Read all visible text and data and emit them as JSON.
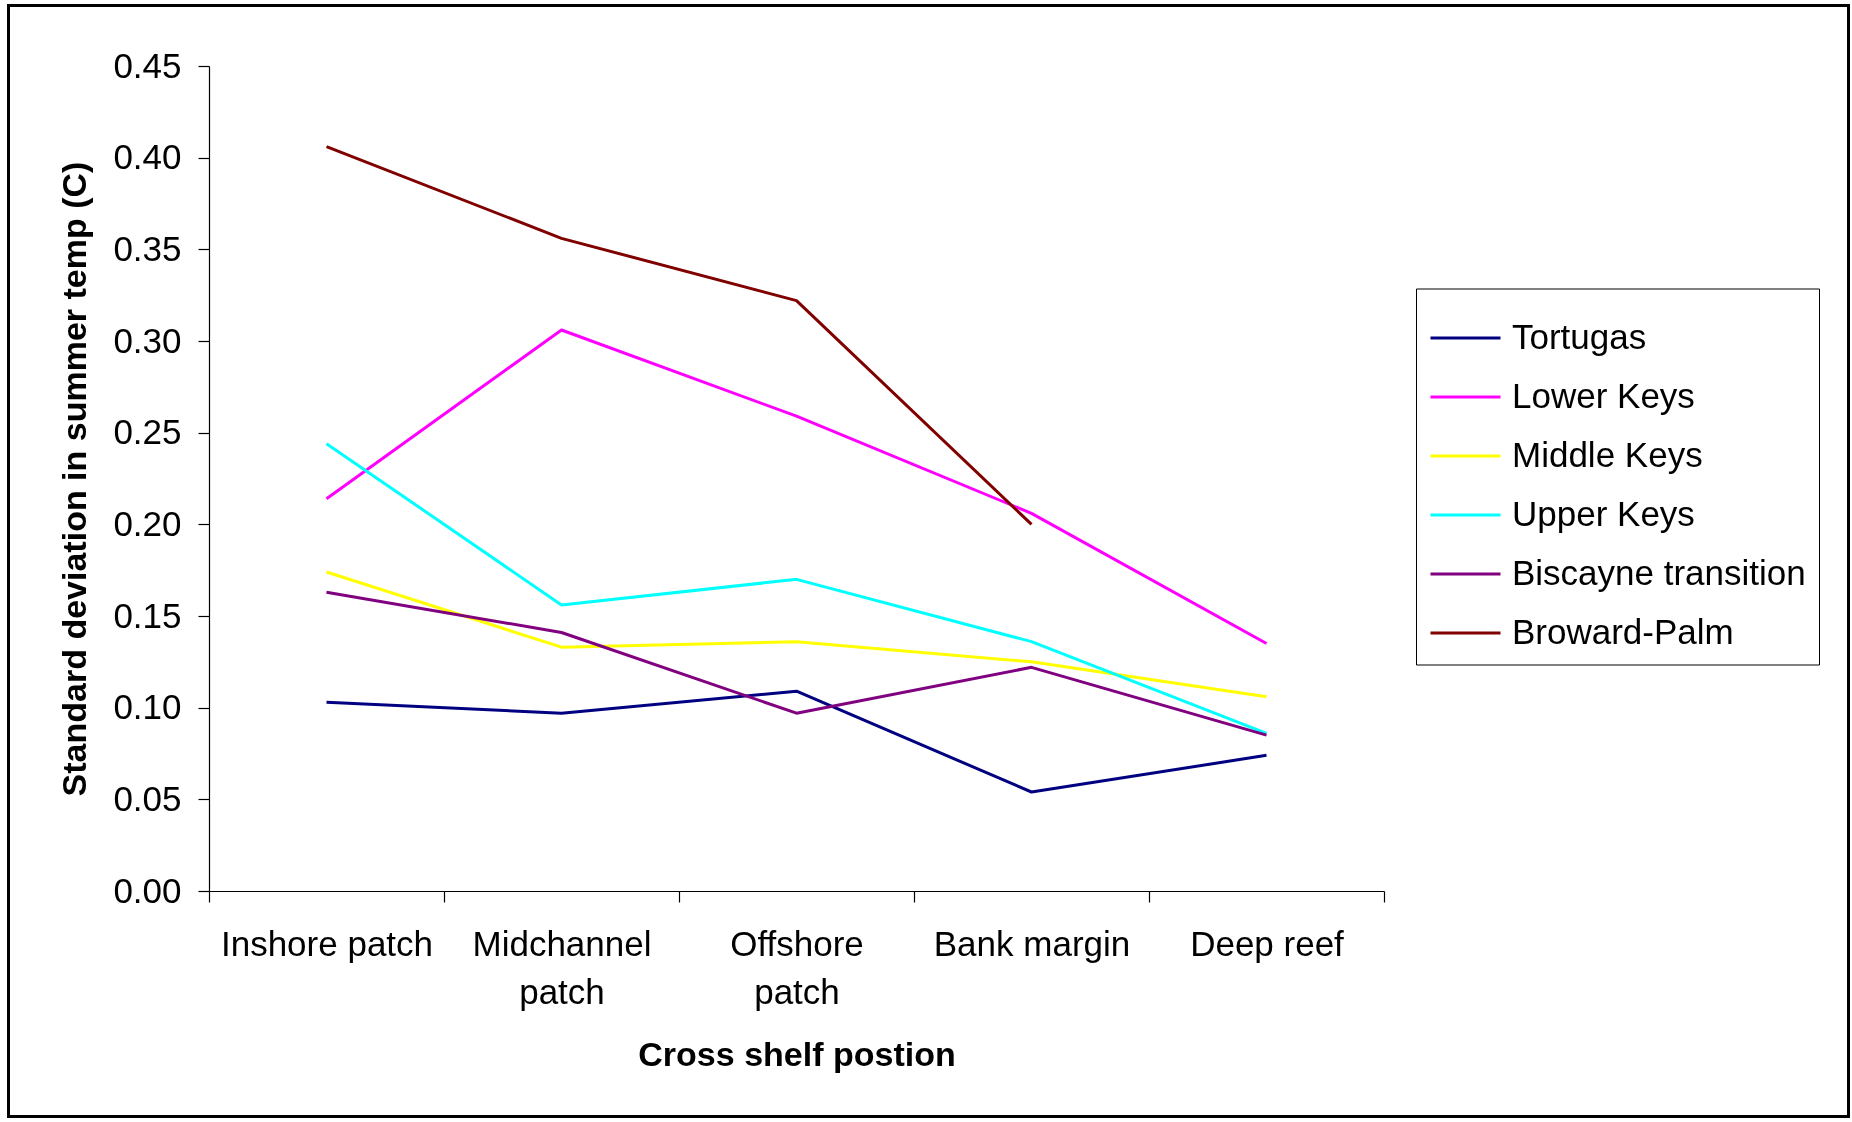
{
  "chart_data": {
    "type": "line",
    "xlabel": "Cross shelf postion",
    "ylabel": "Standard deviation in summer temp (C)",
    "categories": [
      "Inshore patch",
      "Midchannel patch",
      "Offshore patch",
      "Bank margin",
      "Deep reef"
    ],
    "series": [
      {
        "name": "Tortugas",
        "color": "#000080",
        "values": [
          0.103,
          0.097,
          0.109,
          0.054,
          0.074
        ]
      },
      {
        "name": "Lower Keys",
        "color": "#ff00ff",
        "values": [
          0.214,
          0.306,
          0.259,
          0.206,
          0.135
        ]
      },
      {
        "name": "Middle Keys",
        "color": "#ffff00",
        "values": [
          0.174,
          0.133,
          0.136,
          0.125,
          0.106
        ]
      },
      {
        "name": "Upper Keys",
        "color": "#00ffff",
        "values": [
          0.244,
          0.156,
          0.17,
          0.136,
          0.086
        ]
      },
      {
        "name": "Biscayne transition",
        "color": "#800080",
        "values": [
          0.163,
          0.141,
          0.097,
          0.122,
          0.085
        ]
      },
      {
        "name": "Broward-Palm",
        "color": "#800000",
        "values": [
          0.406,
          0.356,
          0.322,
          0.2,
          null
        ]
      }
    ],
    "ylim": [
      0,
      0.45
    ],
    "yticks": [
      {
        "value": 0,
        "label": "0.00"
      },
      {
        "value": 0.05,
        "label": "0.05"
      },
      {
        "value": 0.1,
        "label": "0.10"
      },
      {
        "value": 0.15,
        "label": "0.15"
      },
      {
        "value": 0.2,
        "label": "0.20"
      },
      {
        "value": 0.25,
        "label": "0.25"
      },
      {
        "value": 0.3,
        "label": "0.30"
      },
      {
        "value": 0.35,
        "label": "0.35"
      },
      {
        "value": 0.4,
        "label": "0.40"
      },
      {
        "value": 0.45,
        "label": "0.45"
      }
    ],
    "legend": "right"
  }
}
